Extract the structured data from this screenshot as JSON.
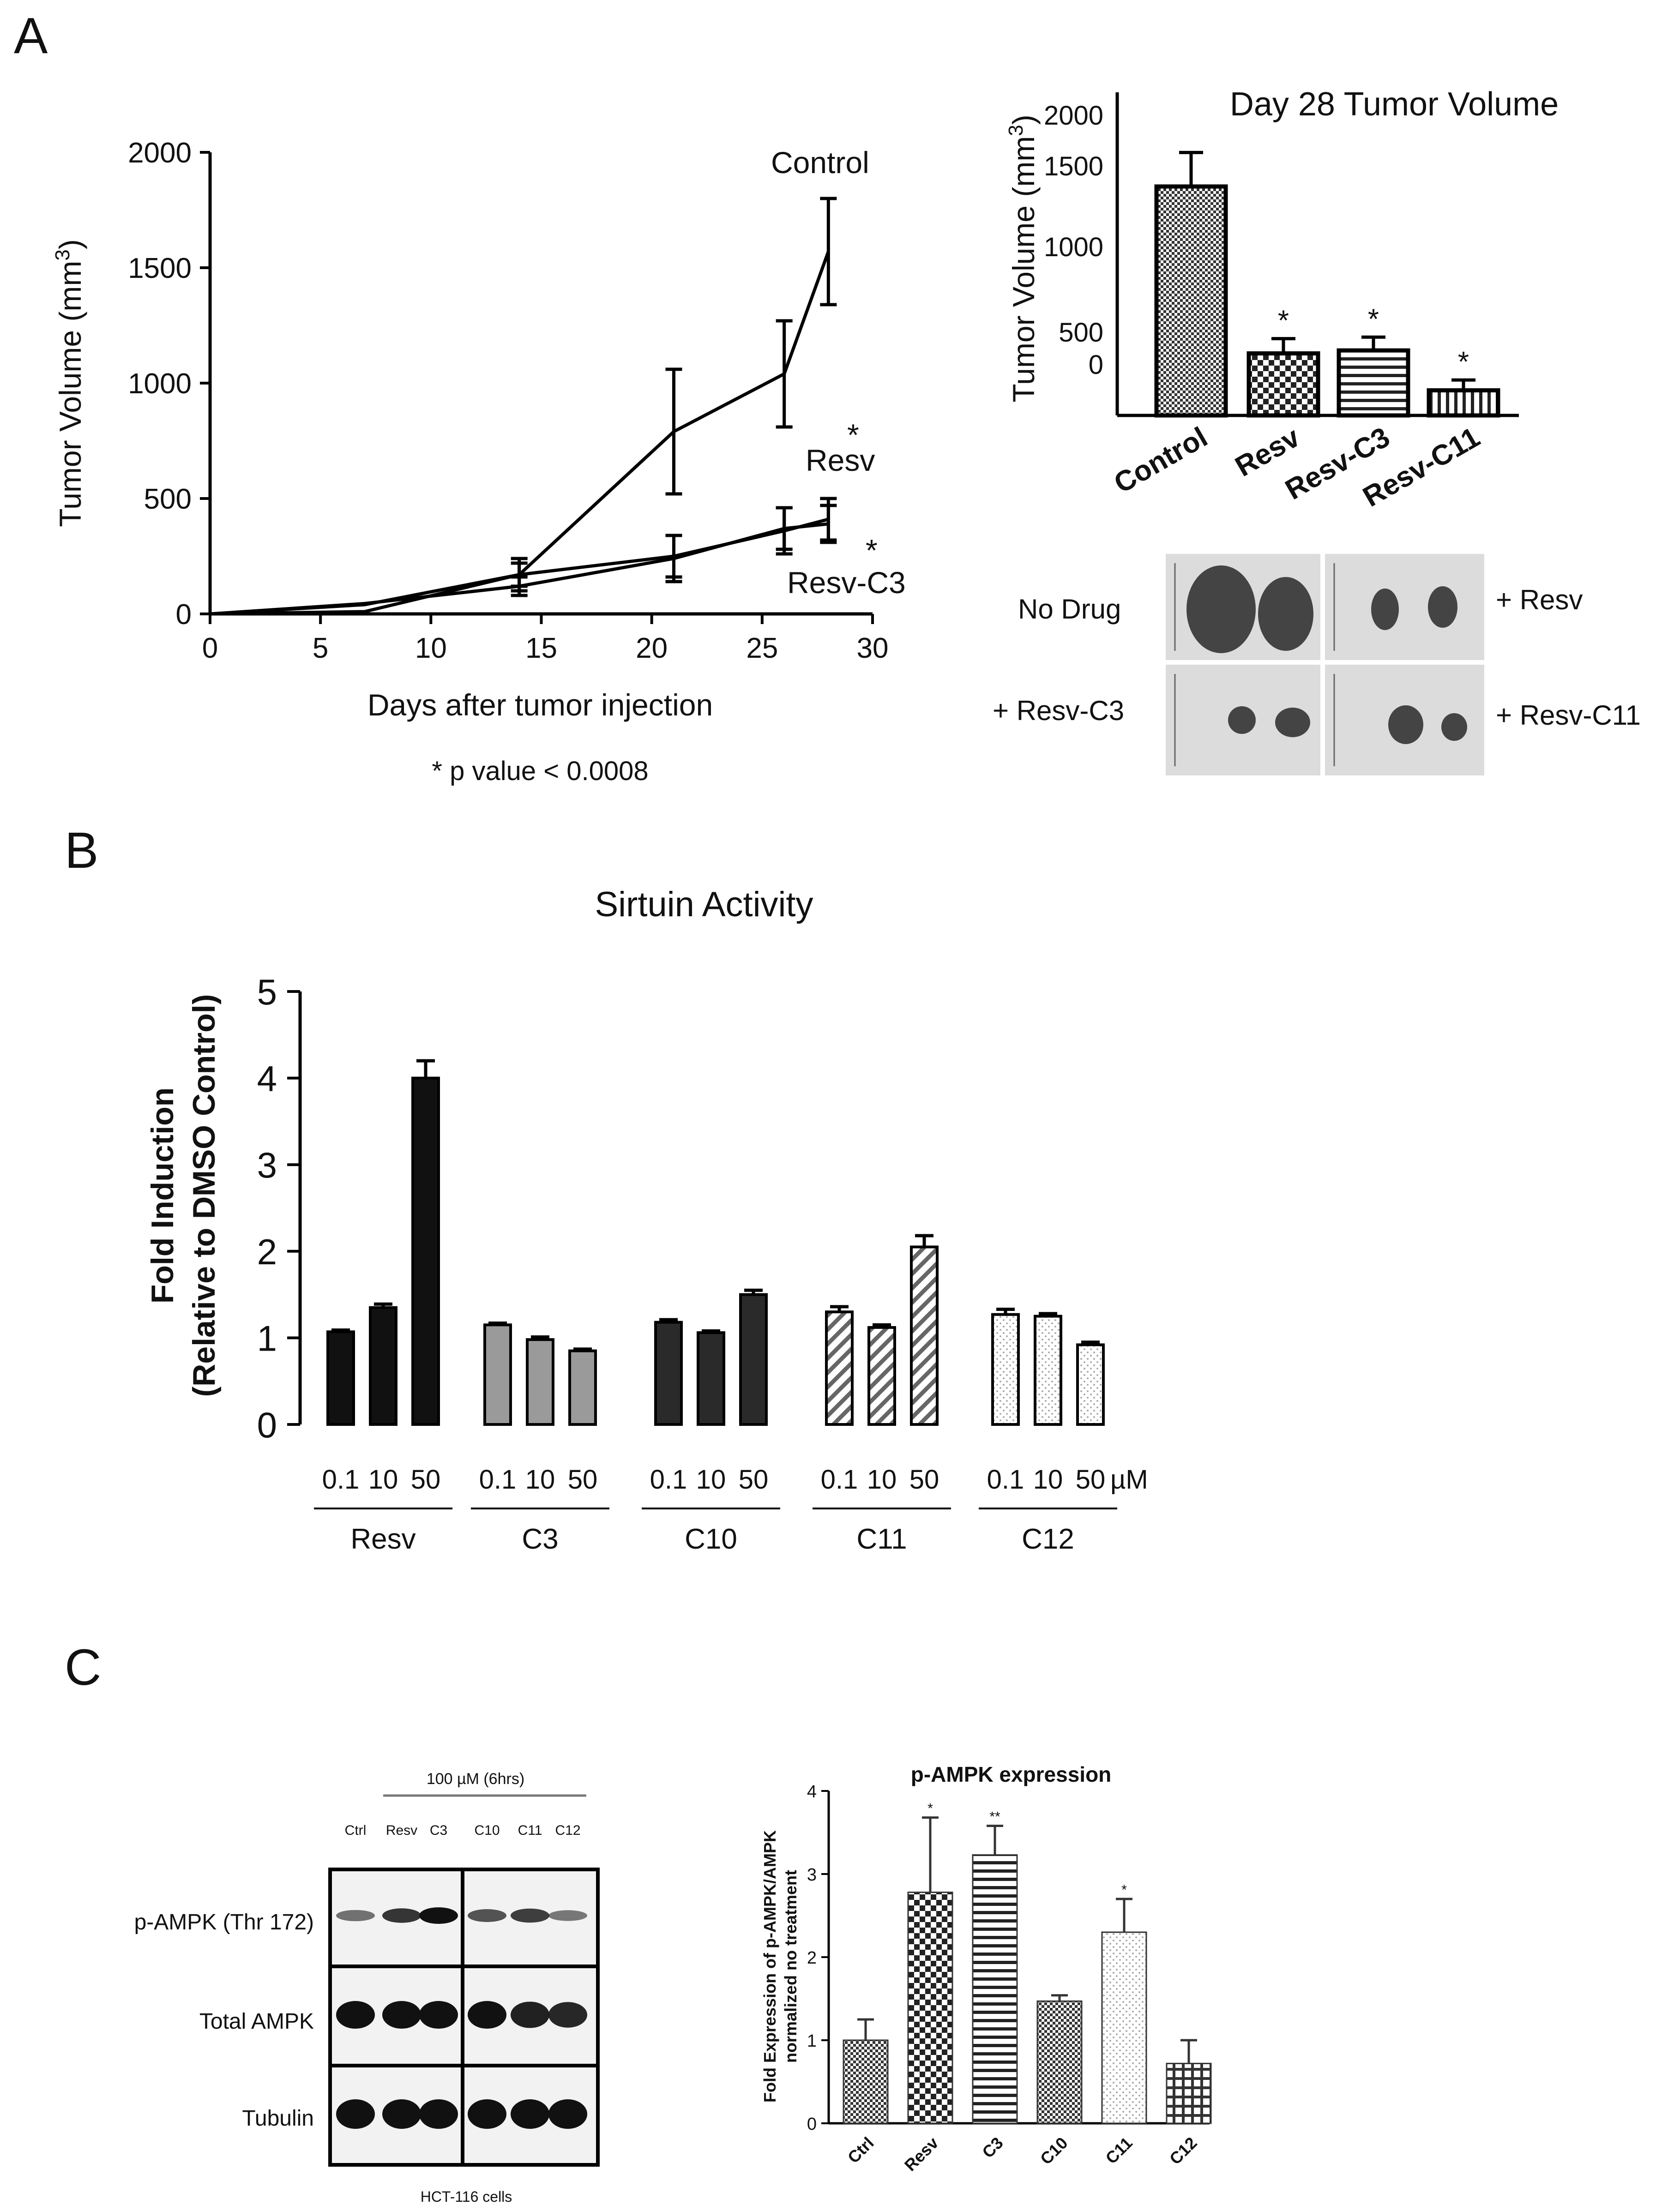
{
  "panel_labels": {
    "a": "A",
    "b": "B",
    "c": "C"
  },
  "colors": {
    "ink": "#111111",
    "blot_bg": "#f2f2f2",
    "photo_bg": "#dcdcdc",
    "bar_black": "#111111",
    "bar_gray": "#999999",
    "bar_dark": "#2a2a2a"
  },
  "chart_data": [
    {
      "id": "tumor_growth",
      "type": "line",
      "title": "",
      "xlabel": "Days after tumor injection",
      "ylabel": "Tumor  Volume (mm",
      "ylabel_sup": "3",
      "ylabel_close": ")",
      "xlim": [
        0,
        30
      ],
      "ylim": [
        0,
        2000
      ],
      "xticks": [
        0,
        5,
        10,
        15,
        20,
        25,
        30
      ],
      "yticks": [
        0,
        500,
        1000,
        1500,
        2000
      ],
      "xtick_labels": [
        "0",
        "5",
        "10",
        "15",
        "20",
        "25",
        "30"
      ],
      "ytick_labels": [
        "0",
        "500",
        "1000",
        "1500",
        "2000"
      ],
      "series": [
        {
          "name": "Control",
          "x": [
            0,
            7,
            14,
            21,
            26,
            28
          ],
          "y": [
            0,
            10,
            170,
            790,
            1040,
            1570
          ],
          "err": [
            0,
            0,
            70,
            270,
            230,
            230
          ]
        },
        {
          "name": "Resv",
          "x": [
            0,
            7,
            14,
            21,
            26,
            28
          ],
          "y": [
            0,
            40,
            170,
            250,
            360,
            410
          ],
          "err": [
            0,
            0,
            50,
            90,
            100,
            90
          ]
        },
        {
          "name": "Resv-C3",
          "x": [
            0,
            7,
            14,
            21,
            26,
            28
          ],
          "y": [
            0,
            45,
            120,
            240,
            370,
            390
          ],
          "err": [
            0,
            0,
            40,
            100,
            90,
            80
          ]
        }
      ],
      "annotations": {
        "control": "Control",
        "resv": "Resv",
        "resv_c3": "Resv-C3",
        "star1": "*",
        "star2": "*"
      },
      "footnote": "* p value < 0.0008"
    },
    {
      "id": "day28",
      "type": "bar",
      "title": "Day 28 Tumor Volume",
      "ylabel": "Tumor  Volume (mm",
      "ylabel_sup": "3",
      "ylabel_close": ")",
      "categories": [
        "Control",
        "Resv",
        "Resv-C3",
        "Resv-C11"
      ],
      "values": [
        1550,
        420,
        440,
        170
      ],
      "errors": [
        230,
        100,
        90,
        70
      ],
      "significance": [
        "",
        "*",
        "*",
        "*"
      ],
      "ylim": [
        0,
        2000
      ],
      "ytick_labels": [
        "2000",
        "1500",
        "1000",
        "500",
        "0"
      ]
    },
    {
      "id": "sirtuin",
      "type": "bar",
      "title": "Sirtuin Activity",
      "ylabel_line1": "Fold Induction",
      "ylabel_line2": "(Relative to  DMSO Control)",
      "ylim": [
        0,
        5
      ],
      "yticks": [
        "0",
        "1",
        "2",
        "3",
        "4",
        "5"
      ],
      "unit": "µM",
      "groups": [
        {
          "name": "Resv",
          "doses": [
            "0.1",
            "10",
            "50"
          ],
          "values": [
            1.07,
            1.35,
            4.0
          ],
          "errors": [
            0.02,
            0.04,
            0.2
          ],
          "fill": "black"
        },
        {
          "name": "C3",
          "doses": [
            "0.1",
            "10",
            "50"
          ],
          "values": [
            1.15,
            0.98,
            0.85
          ],
          "errors": [
            0.02,
            0.03,
            0.02
          ],
          "fill": "gray"
        },
        {
          "name": "C10",
          "doses": [
            "0.1",
            "10",
            "50"
          ],
          "values": [
            1.18,
            1.06,
            1.5
          ],
          "errors": [
            0.03,
            0.02,
            0.05
          ],
          "fill": "dark"
        },
        {
          "name": "C11",
          "doses": [
            "0.1",
            "10",
            "50"
          ],
          "values": [
            1.3,
            1.12,
            2.05
          ],
          "errors": [
            0.06,
            0.03,
            0.13
          ],
          "fill": "hatch"
        },
        {
          "name": "C12",
          "doses": [
            "0.1",
            "10",
            "50"
          ],
          "values": [
            1.27,
            1.25,
            0.92
          ],
          "errors": [
            0.06,
            0.03,
            0.03
          ],
          "fill": "dots"
        }
      ]
    },
    {
      "id": "pampk",
      "type": "bar",
      "title": "p-AMPK expression",
      "ylabel_line1": "Fold Expression of p-AMPK/AMPK",
      "ylabel_line2": "normalized no treatment",
      "ylim": [
        0,
        4
      ],
      "yticks": [
        "0",
        "1",
        "2",
        "3",
        "4"
      ],
      "categories": [
        "Ctrl",
        "Resv",
        "C3",
        "C10",
        "C11",
        "C12"
      ],
      "values": [
        1.0,
        2.78,
        3.23,
        1.47,
        2.3,
        0.72
      ],
      "errors": [
        0.25,
        0.9,
        0.35,
        0.07,
        0.4,
        0.28
      ],
      "significance": [
        "",
        "*",
        "**",
        "",
        "*",
        ""
      ]
    }
  ],
  "photo_panel": {
    "no_drug": "No Drug",
    "resv": "+ Resv",
    "resv_c3": "+ Resv-C3",
    "resv_c11": "+ Resv-C11"
  },
  "western": {
    "treatment": "100 µM (6hrs)",
    "lanes": [
      "Ctrl",
      "Resv",
      "C3",
      "C10",
      "C11",
      "C12"
    ],
    "rows": [
      "p-AMPK (Thr 172)",
      "Total AMPK",
      "Tubulin"
    ],
    "cells": "HCT-116 cells"
  }
}
